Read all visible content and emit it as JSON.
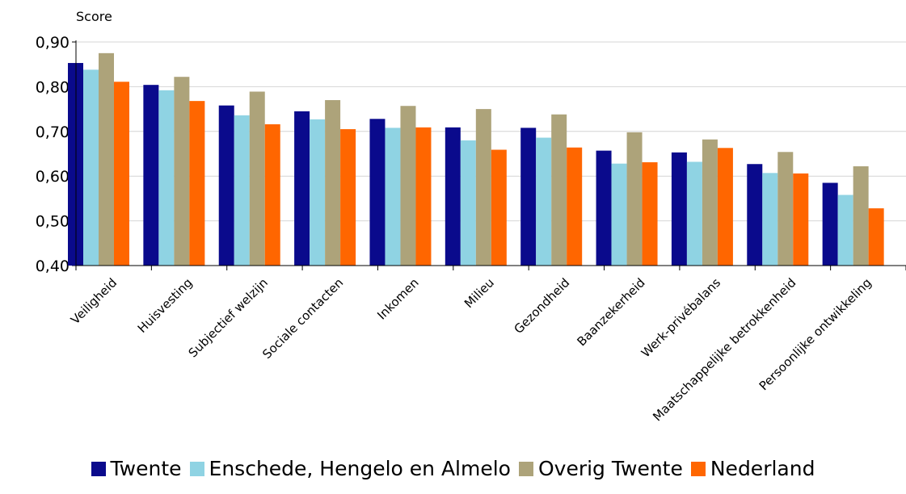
{
  "chart_data": {
    "type": "bar",
    "ylabel": "Score",
    "ylim": [
      0.4,
      0.9
    ],
    "yticks": [
      "0,40",
      "0,50",
      "0,60",
      "0,70",
      "0,80",
      "0,90"
    ],
    "yticks_values": [
      0.4,
      0.5,
      0.6,
      0.7,
      0.8,
      0.9
    ],
    "grid": true,
    "legend_position": "bottom",
    "categories": [
      "Veiligheid",
      "Huisvesting",
      "Subjectief welzijn",
      "Sociale contacten",
      "Inkomen",
      "Milieu",
      "Gezondheid",
      "Baanzekerheid",
      "Werk-privébalans",
      "Maatschappelijke betrokkenheid",
      "Persoonlijke ontwikkeling"
    ],
    "series": [
      {
        "name": "Twente",
        "color": "#0a0a8c",
        "values": [
          0.853,
          0.804,
          0.758,
          0.745,
          0.728,
          0.709,
          0.708,
          0.657,
          0.653,
          0.627,
          0.585
        ]
      },
      {
        "name": "Enschede, Hengelo en Almelo",
        "color": "#8fd3e3",
        "values": [
          0.838,
          0.792,
          0.736,
          0.727,
          0.708,
          0.68,
          0.686,
          0.628,
          0.632,
          0.607,
          0.558
        ]
      },
      {
        "name": "Overig Twente",
        "color": "#ada37a",
        "values": [
          0.875,
          0.822,
          0.789,
          0.77,
          0.757,
          0.75,
          0.738,
          0.698,
          0.682,
          0.654,
          0.622
        ]
      },
      {
        "name": "Nederland",
        "color": "#ff6600",
        "values": [
          0.811,
          0.768,
          0.716,
          0.705,
          0.709,
          0.659,
          0.664,
          0.631,
          0.663,
          0.606,
          0.528
        ]
      }
    ]
  }
}
